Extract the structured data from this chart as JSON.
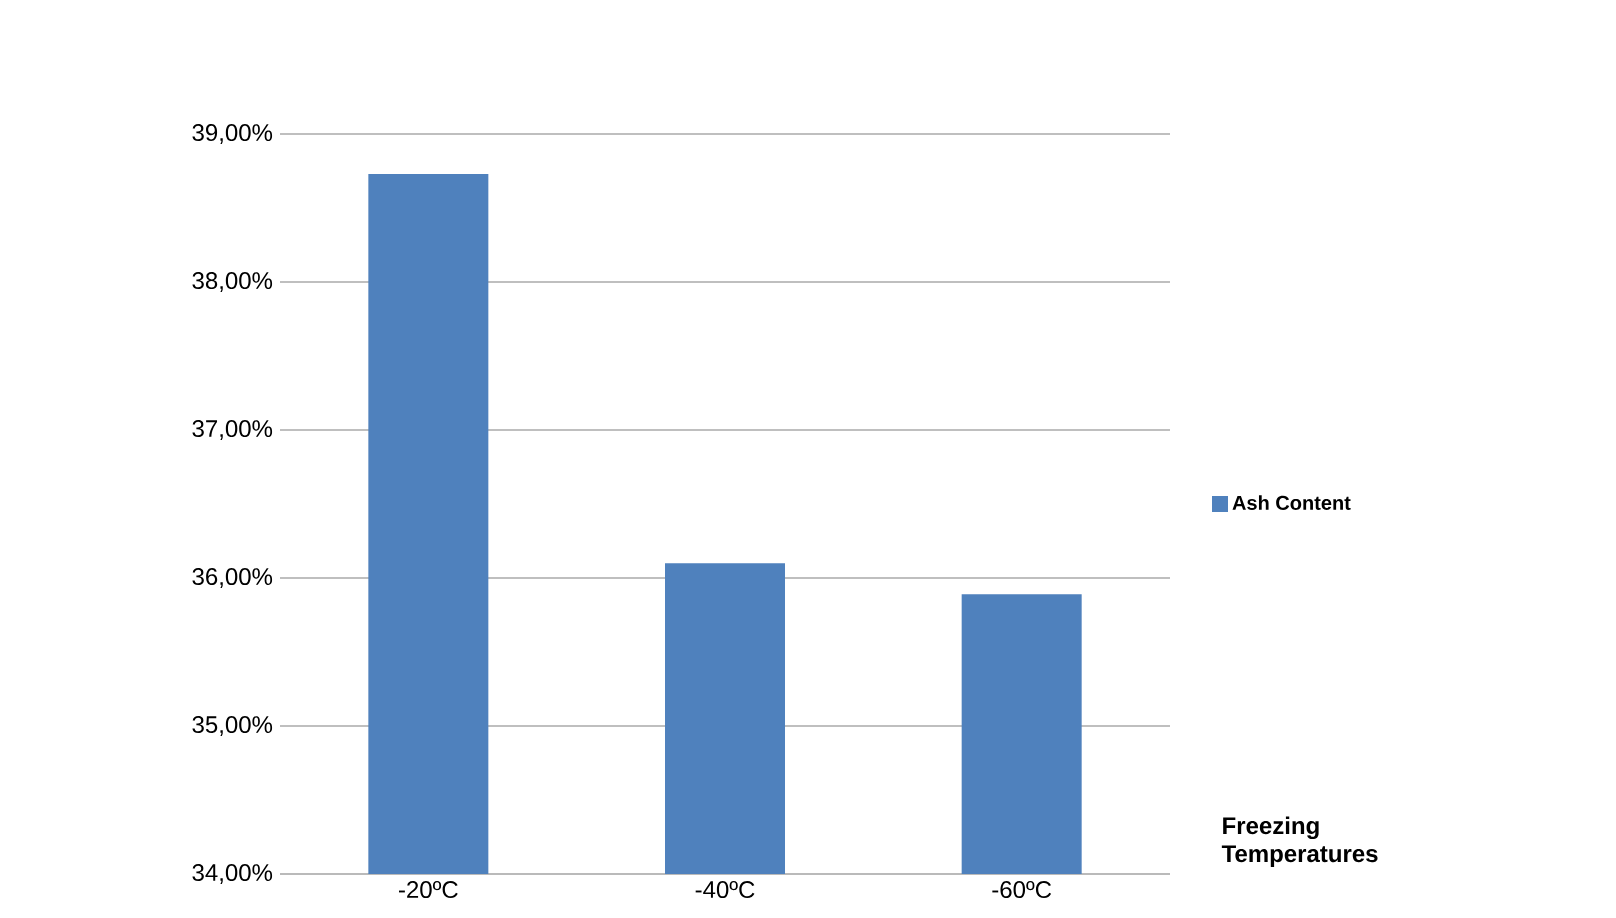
{
  "chart_data": {
    "type": "bar",
    "xlabel": "Freezing Temperatures",
    "categories": [
      "-20ºC",
      "-40ºC",
      "-60ºC"
    ],
    "series": [
      {
        "name": "Ash Content",
        "color": "#4f81bd",
        "values": [
          38.73,
          36.1,
          35.89
        ]
      }
    ],
    "ylim": [
      34,
      39
    ],
    "yticks": [
      {
        "value": 34,
        "label": "34,00%"
      },
      {
        "value": 35,
        "label": "35,00%"
      },
      {
        "value": 36,
        "label": "36,00%"
      },
      {
        "value": 37,
        "label": "37,00%"
      },
      {
        "value": 38,
        "label": "38,00%"
      },
      {
        "value": 39,
        "label": "39,00%"
      }
    ],
    "grid": "y",
    "legend": "right"
  }
}
